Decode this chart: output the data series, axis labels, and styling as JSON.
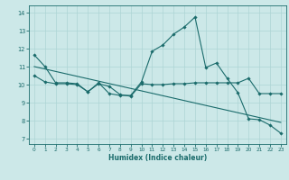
{
  "xlabel": "Humidex (Indice chaleur)",
  "bg_color": "#cce8e8",
  "line_color": "#1a6b6b",
  "grid_color": "#add4d4",
  "xlim": [
    -0.5,
    23.5
  ],
  "ylim": [
    6.7,
    14.4
  ],
  "xticks": [
    0,
    1,
    2,
    3,
    4,
    5,
    6,
    7,
    8,
    9,
    10,
    11,
    12,
    13,
    14,
    15,
    16,
    17,
    18,
    19,
    20,
    21,
    22,
    23
  ],
  "yticks": [
    7,
    8,
    9,
    10,
    11,
    12,
    13,
    14
  ],
  "line1_x": [
    0,
    1,
    2,
    3,
    4,
    5,
    6,
    7,
    8,
    9,
    10,
    11,
    12,
    13,
    14,
    15,
    16,
    17,
    18,
    19,
    20,
    21,
    22,
    23
  ],
  "line1_y": [
    11.65,
    11.0,
    10.1,
    10.1,
    10.05,
    9.6,
    10.1,
    9.5,
    9.4,
    9.4,
    10.15,
    11.85,
    12.2,
    12.8,
    13.2,
    13.75,
    10.95,
    11.2,
    10.35,
    9.55,
    8.1,
    8.05,
    7.75,
    7.3
  ],
  "line2_x": [
    0,
    23
  ],
  "line2_y": [
    11.0,
    7.9
  ],
  "line3_x": [
    0,
    1,
    2,
    3,
    4,
    5,
    6,
    7,
    8,
    9,
    10,
    11,
    12,
    13,
    14,
    15,
    16,
    17,
    18,
    19,
    20,
    21,
    22,
    23
  ],
  "line3_y": [
    10.5,
    10.15,
    10.05,
    10.05,
    10.0,
    9.6,
    10.05,
    9.9,
    9.45,
    9.35,
    10.05,
    10.0,
    10.0,
    10.05,
    10.05,
    10.1,
    10.1,
    10.1,
    10.1,
    10.1,
    10.35,
    9.5,
    9.5,
    9.5
  ]
}
